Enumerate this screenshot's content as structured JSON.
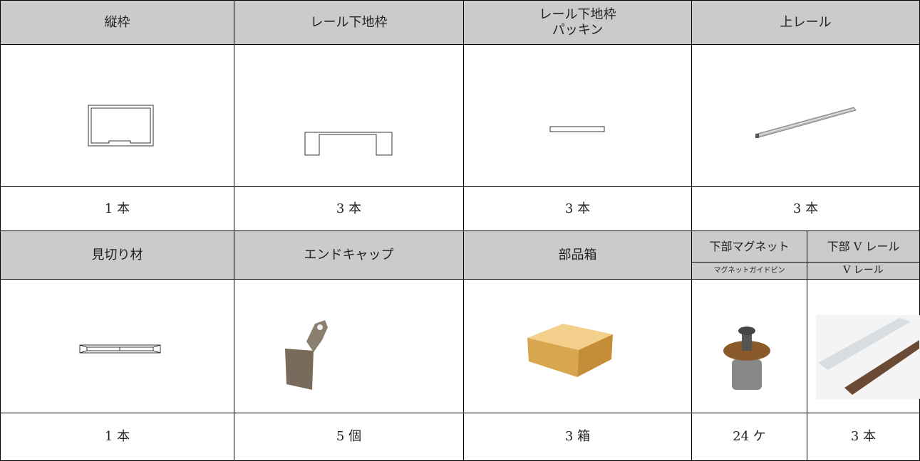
{
  "sections": [
    {
      "headers": [
        "縦枠",
        "レール下地枠",
        [
          "レール下地枠",
          "パッキン"
        ],
        "上レール"
      ],
      "counts": [
        "1 本",
        "3 本",
        "3 本",
        "3 本"
      ]
    },
    {
      "headers": [
        "見切り材",
        "エンドキャップ",
        "部品箱",
        {
          "main": "下部マグネット",
          "sub": "マグネットガイドピン"
        },
        {
          "main": "下部 V レール",
          "sub": "V レール"
        }
      ],
      "counts": [
        "1 本",
        "5 個",
        "3 箱",
        "24 ケ",
        "3 本"
      ]
    }
  ]
}
